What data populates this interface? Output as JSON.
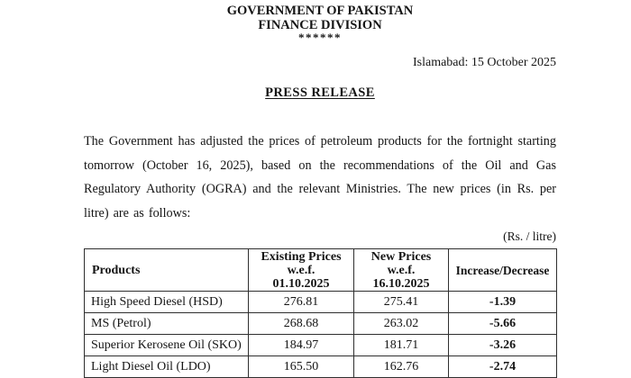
{
  "page": {
    "header": {
      "org": "GOVERNMENT OF PAKISTAN",
      "division": "FINANCE DIVISION",
      "stars": "******"
    },
    "dateline": "Islamabad: 15 October 2025",
    "title": "PRESS RELEASE",
    "body": "The Government has adjusted the prices of petroleum products for the fortnight starting tomorrow (October 16, 2025), based on the recommendations of the Oil and Gas Regulatory Authority (OGRA) and the relevant Ministries. The new prices (in Rs. per litre) are as follows:",
    "unit_note": "(Rs. / litre)"
  },
  "table": {
    "columns": [
      {
        "lines": [
          "Products"
        ]
      },
      {
        "lines": [
          "Existing Prices",
          "w.e.f.",
          "01.10.2025"
        ]
      },
      {
        "lines": [
          "New Prices",
          "w.e.f.",
          "16.10.2025"
        ]
      },
      {
        "lines": [
          "Increase/Decrease"
        ]
      }
    ],
    "rows": [
      [
        "High Speed Diesel (HSD)",
        "276.81",
        "275.41",
        "-1.39"
      ],
      [
        "MS (Petrol)",
        "268.68",
        "263.02",
        "-5.66"
      ],
      [
        "Superior Kerosene Oil (SKO)",
        "184.97",
        "181.71",
        "-3.26"
      ],
      [
        "Light Diesel Oil (LDO)",
        "165.50",
        "162.76",
        "-2.74"
      ]
    ]
  },
  "colors": {
    "text": "#151515",
    "border": "#2f2f2f",
    "background": "#ffffff"
  }
}
